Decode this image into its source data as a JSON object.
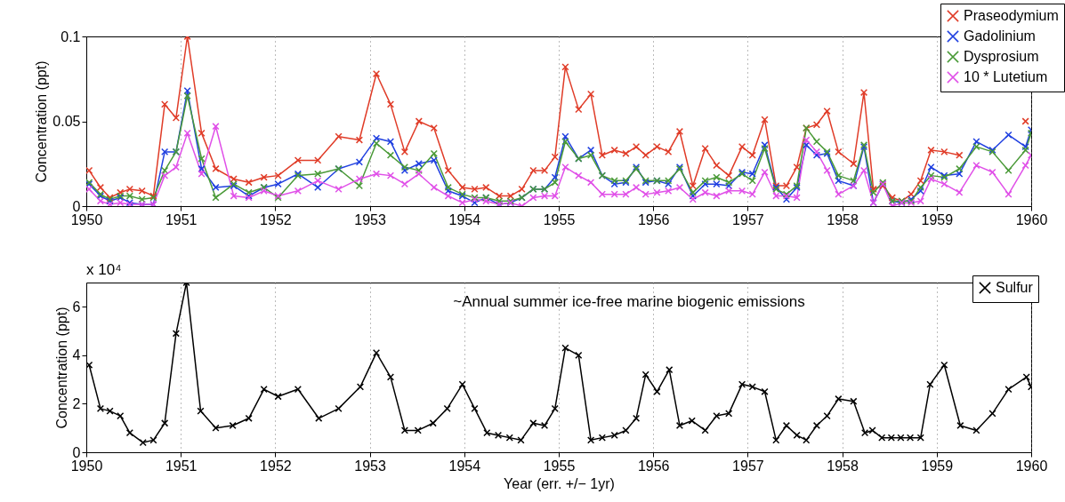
{
  "chart_data": [
    {
      "type": "line",
      "ylabel": "Concentration (ppt)",
      "xlim": [
        1950,
        1960
      ],
      "xticks": [
        1950,
        1951,
        1952,
        1953,
        1954,
        1955,
        1956,
        1957,
        1958,
        1959,
        1960
      ],
      "ylim": [
        0,
        0.1
      ],
      "yticks": [
        0,
        0.05,
        0.1
      ],
      "grid": "x",
      "legend": "top right",
      "marker": "cross",
      "x": [
        1950.03,
        1950.15,
        1950.25,
        1950.36,
        1950.46,
        1950.59,
        1950.71,
        1950.83,
        1950.95,
        1951.07,
        1951.22,
        1951.37,
        1951.56,
        1951.72,
        1951.88,
        1952.03,
        1952.24,
        1952.45,
        1952.67,
        1952.89,
        1953.07,
        1953.22,
        1953.37,
        1953.52,
        1953.68,
        1953.83,
        1953.98,
        1954.11,
        1954.23,
        1954.37,
        1954.49,
        1954.61,
        1954.73,
        1954.85,
        1954.96,
        1955.07,
        1955.21,
        1955.34,
        1955.46,
        1955.59,
        1955.71,
        1955.82,
        1955.92,
        1956.04,
        1956.16,
        1956.28,
        1956.42,
        1956.55,
        1956.67,
        1956.8,
        1956.94,
        1957.05,
        1957.18,
        1957.3,
        1957.41,
        1957.52,
        1957.62,
        1957.73,
        1957.84,
        1957.96,
        1958.12,
        1958.23,
        1958.33,
        1958.43,
        1958.53,
        1958.63,
        1958.73,
        1958.83,
        1958.94,
        1959.08,
        1959.24,
        1959.42,
        1959.59,
        1959.76,
        1959.94,
        1960
      ],
      "series": [
        {
          "name": "Praseodymium",
          "color": "#e03c28",
          "values": [
            0.021,
            0.011,
            0.005,
            0.008,
            0.01,
            0.009,
            0.006,
            0.06,
            0.052,
            0.1,
            0.043,
            0.022,
            0.016,
            0.014,
            0.017,
            0.018,
            0.027,
            0.027,
            0.041,
            0.039,
            0.078,
            0.06,
            0.032,
            0.05,
            0.046,
            0.021,
            0.011,
            0.01,
            0.011,
            0.006,
            0.006,
            0.01,
            0.021,
            0.021,
            0.029,
            0.082,
            0.057,
            0.066,
            0.03,
            0.033,
            0.031,
            0.035,
            0.03,
            0.035,
            0.032,
            0.044,
            0.012,
            0.034,
            0.024,
            0.018,
            0.035,
            0.03,
            0.051,
            0.012,
            0.012,
            0.023,
            0.046,
            0.048,
            0.056,
            0.032,
            0.025,
            0.067,
            0.01,
            0.012,
            0.005,
            0.003,
            0.007,
            0.015,
            0.033,
            0.032,
            0.03,
            null,
            null,
            null,
            0.05,
            null
          ]
        },
        {
          "name": "Gadolinium",
          "color": "#2040e0",
          "values": [
            0.013,
            0.006,
            0.003,
            0.005,
            0.002,
            0.001,
            0.001,
            0.032,
            0.032,
            0.068,
            0.022,
            0.011,
            0.012,
            0.006,
            0.011,
            0.013,
            0.019,
            0.011,
            0.022,
            0.026,
            0.04,
            0.038,
            0.021,
            0.025,
            0.027,
            0.009,
            0.006,
            0.002,
            0.005,
            0.001,
            0.002,
            0.005,
            0.01,
            0.01,
            0.017,
            0.041,
            0.028,
            0.033,
            0.018,
            0.013,
            0.014,
            0.023,
            0.014,
            0.015,
            0.013,
            0.023,
            0.006,
            0.013,
            0.013,
            0.012,
            0.02,
            0.019,
            0.036,
            0.011,
            0.004,
            0.011,
            0.036,
            0.03,
            0.031,
            0.015,
            0.012,
            0.035,
            0.002,
            0.013,
            0.003,
            0.002,
            0.004,
            0.009,
            0.023,
            0.018,
            0.019,
            0.038,
            0.033,
            0.042,
            0.035,
            0.045
          ]
        },
        {
          "name": "Dysprosium",
          "color": "#4a9a38",
          "values": [
            0.014,
            0.007,
            0.004,
            0.006,
            0.006,
            0.004,
            0.005,
            0.021,
            0.032,
            0.065,
            0.028,
            0.005,
            0.013,
            0.008,
            0.011,
            0.005,
            0.018,
            0.019,
            0.022,
            0.012,
            0.037,
            0.03,
            0.023,
            0.021,
            0.031,
            0.011,
            0.007,
            0.005,
            0.005,
            0.003,
            0.003,
            0.005,
            0.01,
            0.01,
            0.014,
            0.038,
            0.028,
            0.03,
            0.018,
            0.015,
            0.015,
            0.022,
            0.015,
            0.015,
            0.015,
            0.022,
            0.008,
            0.015,
            0.017,
            0.014,
            0.019,
            0.015,
            0.034,
            0.01,
            0.007,
            0.012,
            0.046,
            0.038,
            0.032,
            0.018,
            0.015,
            0.036,
            0.008,
            0.014,
            0.003,
            0.003,
            0.003,
            0.011,
            0.018,
            0.017,
            0.022,
            0.035,
            0.032,
            0.021,
            0.033,
            0.043
          ]
        },
        {
          "name": "10 * Lutetium",
          "color": "#e050e8",
          "values": [
            0.01,
            0.003,
            0.001,
            0.002,
            0.001,
            0.001,
            0.001,
            0.018,
            0.023,
            0.043,
            0.019,
            0.047,
            0.006,
            0.005,
            0.009,
            0.006,
            0.009,
            0.015,
            0.01,
            0.016,
            0.019,
            0.018,
            0.013,
            0.019,
            0.011,
            0.006,
            0.002,
            0.004,
            0.003,
            0.001,
            0.002,
            0,
            0.005,
            0.006,
            0.006,
            0.023,
            0.018,
            0.014,
            0.007,
            0.007,
            0.007,
            0.011,
            0.007,
            0.008,
            0.009,
            0.011,
            0.004,
            0.008,
            0.006,
            0.009,
            0.009,
            0.007,
            0.02,
            0.006,
            0.006,
            0.005,
            0.039,
            0.032,
            0.021,
            0.007,
            0.012,
            0.021,
            0.002,
            0.013,
            0,
            0.002,
            0.002,
            0.003,
            0.016,
            0.013,
            0.008,
            0.024,
            0.02,
            0.007,
            0.024,
            0.03
          ]
        }
      ]
    },
    {
      "type": "line",
      "ylabel": "Concentration (ppt)",
      "xlabel": "Year (err. +/− 1yr)",
      "xlim": [
        1950,
        1960
      ],
      "xticks": [
        1950,
        1951,
        1952,
        1953,
        1954,
        1955,
        1956,
        1957,
        1958,
        1959,
        1960
      ],
      "ylim": [
        0,
        7
      ],
      "yticks": [
        0,
        2,
        4,
        6
      ],
      "grid": "x",
      "legend": "top right",
      "marker": "cross",
      "annotations": [
        "x 10⁴",
        "~Annual summer ice-free marine biogenic emissions"
      ],
      "x": [
        1950.03,
        1950.15,
        1950.25,
        1950.36,
        1950.46,
        1950.6,
        1950.71,
        1950.83,
        1950.95,
        1951.06,
        1951.21,
        1951.37,
        1951.55,
        1951.72,
        1951.88,
        1952.03,
        1952.24,
        1952.46,
        1952.67,
        1952.9,
        1953.07,
        1953.22,
        1953.37,
        1953.51,
        1953.67,
        1953.82,
        1953.98,
        1954.11,
        1954.24,
        1954.36,
        1954.48,
        1954.6,
        1954.73,
        1954.85,
        1954.96,
        1955.07,
        1955.21,
        1955.34,
        1955.46,
        1955.59,
        1955.71,
        1955.82,
        1955.92,
        1956.04,
        1956.17,
        1956.28,
        1956.41,
        1956.55,
        1956.67,
        1956.8,
        1956.94,
        1957.05,
        1957.18,
        1957.3,
        1957.41,
        1957.52,
        1957.62,
        1957.73,
        1957.84,
        1957.96,
        1958.12,
        1958.24,
        1958.32,
        1958.42,
        1958.52,
        1958.62,
        1958.72,
        1958.83,
        1958.93,
        1959.08,
        1959.25,
        1959.42,
        1959.59,
        1959.76,
        1959.95,
        1960
      ],
      "series": [
        {
          "name": "Sulfur",
          "color": "#000000",
          "values": [
            3.6,
            1.8,
            1.7,
            1.5,
            0.8,
            0.4,
            0.5,
            1.2,
            4.9,
            7,
            1.7,
            1.0,
            1.1,
            1.4,
            2.6,
            2.3,
            2.6,
            1.4,
            1.8,
            2.7,
            4.1,
            3.1,
            0.9,
            0.9,
            1.2,
            1.8,
            2.8,
            1.8,
            0.8,
            0.7,
            0.6,
            0.5,
            1.2,
            1.1,
            1.8,
            4.3,
            4.0,
            0.5,
            0.6,
            0.7,
            0.9,
            1.4,
            3.2,
            2.5,
            3.4,
            1.1,
            1.3,
            0.9,
            1.5,
            1.6,
            2.8,
            2.7,
            2.5,
            0.5,
            1.1,
            0.7,
            0.5,
            1.1,
            1.5,
            2.2,
            2.1,
            0.8,
            0.9,
            0.6,
            0.6,
            0.6,
            0.6,
            0.6,
            2.8,
            3.6,
            1.1,
            0.9,
            1.6,
            2.6,
            3.1,
            2.7
          ]
        }
      ]
    }
  ]
}
